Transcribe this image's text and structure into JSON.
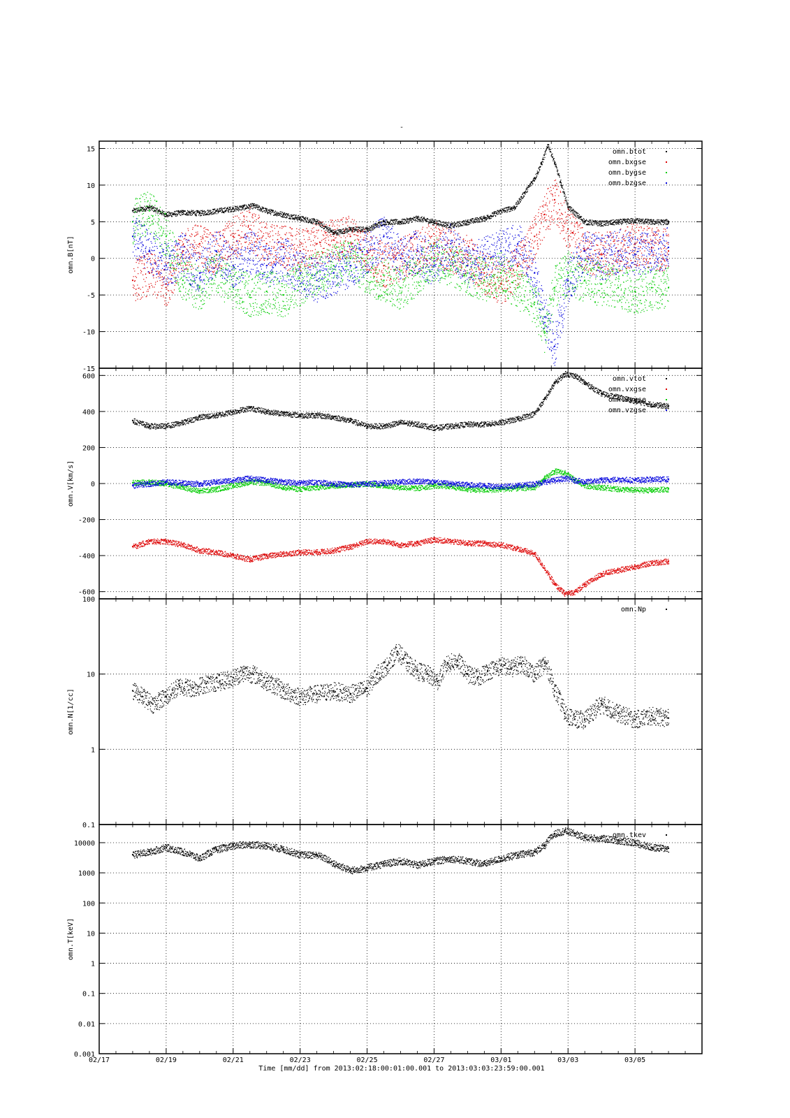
{
  "title": "-",
  "xlabel": "Time [mm/dd]  from 2013:02:18:00:01:00.001  to  2013:03:03:23:59:00.001",
  "x_ticks": [
    "02/17",
    "02/19",
    "02/21",
    "02/23",
    "02/25",
    "02/27",
    "03/01",
    "03/03",
    "03/05"
  ],
  "colors": {
    "black": "#000000",
    "red": "#dd0000",
    "green": "#00cc00",
    "blue": "#0000dd"
  },
  "chart_data": [
    {
      "type": "scatter",
      "ylabel": "omn.B[nT]",
      "ylim": [
        -15,
        16
      ],
      "yscale": "linear",
      "y_ticks": [
        "15",
        "10",
        "5",
        "0",
        "-5",
        "-10",
        "-15"
      ],
      "x_range_days": [
        17,
        33
      ],
      "grid": true,
      "legend": "top-right",
      "series": [
        {
          "name": "omn.btot",
          "color": "#000000",
          "x": [
            18.0,
            18.5,
            19.0,
            19.5,
            20.0,
            20.5,
            21.0,
            21.3,
            21.6,
            22.0,
            22.5,
            23.0,
            23.5,
            24.0,
            24.5,
            25.0,
            25.5,
            26.0,
            26.5,
            27.0,
            27.5,
            28.0,
            28.5,
            29.0,
            29.4,
            29.7,
            30.0,
            30.2,
            30.4,
            30.6,
            30.8,
            31.0,
            31.5,
            32.0,
            32.5,
            33.0,
            33.5,
            34.0
          ],
          "y": [
            6.5,
            7.0,
            6.0,
            6.3,
            6.2,
            6.5,
            6.8,
            7.0,
            7.2,
            6.5,
            6.0,
            5.5,
            5.0,
            3.5,
            4.0,
            4.0,
            5.0,
            5.0,
            5.5,
            5.0,
            4.5,
            5.0,
            5.5,
            6.5,
            7.0,
            9.0,
            11.0,
            13.0,
            15.5,
            13.0,
            10.0,
            7.0,
            5.0,
            4.8,
            5.0,
            5.2,
            5.0,
            5.0
          ]
        },
        {
          "name": "omn.bxgse",
          "color": "#dd0000",
          "x": [
            18.0,
            18.5,
            19.0,
            19.5,
            20.0,
            20.5,
            21.0,
            21.5,
            22.0,
            22.5,
            23.0,
            23.5,
            24.0,
            24.5,
            25.0,
            25.5,
            26.0,
            26.5,
            27.0,
            27.5,
            28.0,
            28.5,
            29.0,
            29.5,
            30.0,
            30.3,
            30.6,
            31.0,
            31.5,
            32.0,
            32.5,
            33.0,
            33.5,
            34.0
          ],
          "y": [
            -3.0,
            -2.0,
            -3.5,
            1.0,
            2.0,
            0.5,
            3.0,
            4.0,
            2.0,
            1.5,
            1.0,
            2.0,
            2.5,
            3.0,
            1.0,
            -1.0,
            0.0,
            1.0,
            2.0,
            1.0,
            0.5,
            -2.0,
            -3.5,
            -1.0,
            3.0,
            6.0,
            8.0,
            4.0,
            1.0,
            0.5,
            1.0,
            2.0,
            1.5,
            1.0
          ]
        },
        {
          "name": "omn.bygse",
          "color": "#00cc00",
          "x": [
            18.0,
            18.5,
            19.0,
            19.5,
            20.0,
            20.5,
            21.0,
            21.5,
            22.0,
            22.5,
            23.0,
            23.5,
            24.0,
            24.5,
            25.0,
            25.5,
            26.0,
            26.5,
            27.0,
            27.5,
            28.0,
            28.5,
            29.0,
            29.5,
            30.0,
            30.3,
            30.6,
            31.0,
            31.5,
            32.0,
            32.5,
            33.0,
            33.5,
            34.0
          ],
          "y": [
            5.0,
            6.5,
            3.0,
            -3.0,
            -4.0,
            -2.0,
            -4.0,
            -5.0,
            -4.5,
            -5.0,
            -3.5,
            -2.0,
            -1.0,
            0.0,
            -2.0,
            -3.0,
            -4.0,
            -2.0,
            0.0,
            -1.0,
            -2.0,
            -3.0,
            -2.0,
            -4.0,
            -6.0,
            -10.0,
            -4.0,
            -2.0,
            -3.0,
            -3.5,
            -4.0,
            -4.5,
            -4.0,
            -4.0
          ]
        },
        {
          "name": "omn.bzgse",
          "color": "#0000dd",
          "x": [
            18.0,
            18.5,
            19.0,
            19.5,
            20.0,
            20.5,
            21.0,
            21.5,
            22.0,
            22.5,
            23.0,
            23.5,
            24.0,
            24.5,
            25.0,
            25.5,
            26.0,
            26.5,
            27.0,
            27.5,
            28.0,
            28.5,
            29.0,
            29.5,
            30.0,
            30.3,
            30.6,
            31.0,
            31.5,
            32.0,
            32.5,
            33.0,
            33.5,
            34.0
          ],
          "y": [
            3.0,
            1.0,
            -1.0,
            0.5,
            -2.0,
            1.0,
            -1.0,
            1.0,
            -1.0,
            0.0,
            -2.0,
            -3.0,
            -2.0,
            -1.0,
            1.0,
            3.0,
            0.0,
            1.0,
            -1.0,
            2.0,
            -1.0,
            0.0,
            1.0,
            2.0,
            -2.0,
            -8.0,
            -12.0,
            -3.0,
            1.0,
            0.0,
            1.0,
            0.5,
            1.0,
            1.5
          ]
        }
      ]
    },
    {
      "type": "scatter",
      "ylabel": "omn.V[km/s]",
      "ylim": [
        -640,
        640
      ],
      "yscale": "linear",
      "y_ticks": [
        "600",
        "400",
        "200",
        "0",
        "-200",
        "-400",
        "-600"
      ],
      "grid": true,
      "legend": "top-right",
      "series": [
        {
          "name": "omn.vtot",
          "color": "#000000",
          "x": [
            18.0,
            18.5,
            19.0,
            19.5,
            20.0,
            20.5,
            21.0,
            21.5,
            22.0,
            22.5,
            23.0,
            23.5,
            24.0,
            24.5,
            25.0,
            25.5,
            26.0,
            26.5,
            27.0,
            27.5,
            28.0,
            28.5,
            29.0,
            29.5,
            30.0,
            30.3,
            30.6,
            30.9,
            31.2,
            31.5,
            32.0,
            32.5,
            33.0,
            33.5,
            34.0
          ],
          "y": [
            350,
            320,
            320,
            340,
            370,
            380,
            400,
            420,
            400,
            390,
            380,
            380,
            370,
            350,
            320,
            320,
            340,
            330,
            310,
            320,
            330,
            330,
            340,
            360,
            390,
            470,
            560,
            610,
            600,
            560,
            500,
            480,
            460,
            440,
            430
          ]
        },
        {
          "name": "omn.vxgse",
          "color": "#dd0000",
          "x": [
            18.0,
            18.5,
            19.0,
            19.5,
            20.0,
            20.5,
            21.0,
            21.5,
            22.0,
            22.5,
            23.0,
            23.5,
            24.0,
            24.5,
            25.0,
            25.5,
            26.0,
            26.5,
            27.0,
            27.5,
            28.0,
            28.5,
            29.0,
            29.5,
            30.0,
            30.3,
            30.6,
            30.9,
            31.2,
            31.5,
            32.0,
            32.5,
            33.0,
            33.5,
            34.0
          ],
          "y": [
            -350,
            -320,
            -320,
            -340,
            -370,
            -380,
            -400,
            -420,
            -400,
            -390,
            -380,
            -380,
            -370,
            -350,
            -320,
            -320,
            -340,
            -330,
            -310,
            -320,
            -330,
            -330,
            -340,
            -360,
            -390,
            -470,
            -560,
            -610,
            -600,
            -560,
            -500,
            -480,
            -460,
            -440,
            -430
          ]
        },
        {
          "name": "omn.vygse",
          "color": "#00cc00",
          "x": [
            18.0,
            18.5,
            19.0,
            19.5,
            20.0,
            20.5,
            21.0,
            21.5,
            22.0,
            22.5,
            23.0,
            23.5,
            24.0,
            24.5,
            25.0,
            25.5,
            26.0,
            26.5,
            27.0,
            27.5,
            28.0,
            28.5,
            29.0,
            29.5,
            30.0,
            30.3,
            30.6,
            30.9,
            31.2,
            31.5,
            32.0,
            32.5,
            33.0,
            33.5,
            34.0
          ],
          "y": [
            5,
            10,
            0,
            -20,
            -40,
            -30,
            -10,
            10,
            5,
            -20,
            -30,
            -20,
            -10,
            -5,
            0,
            -10,
            -20,
            -25,
            -10,
            -15,
            -30,
            -35,
            -30,
            -25,
            -20,
            30,
            70,
            60,
            20,
            -10,
            -20,
            -30,
            -35,
            -35,
            -30
          ]
        },
        {
          "name": "omn.vzgse",
          "color": "#0000dd",
          "x": [
            18.0,
            18.5,
            19.0,
            19.5,
            20.0,
            20.5,
            21.0,
            21.5,
            22.0,
            22.5,
            23.0,
            23.5,
            24.0,
            24.5,
            25.0,
            25.5,
            26.0,
            26.5,
            27.0,
            27.5,
            28.0,
            28.5,
            29.0,
            29.5,
            30.0,
            30.3,
            30.6,
            30.9,
            31.2,
            31.5,
            32.0,
            32.5,
            33.0,
            33.5,
            34.0
          ],
          "y": [
            -10,
            0,
            10,
            5,
            0,
            10,
            20,
            30,
            20,
            10,
            5,
            10,
            0,
            -5,
            0,
            5,
            10,
            15,
            10,
            0,
            -5,
            -10,
            -15,
            -10,
            0,
            10,
            20,
            30,
            20,
            10,
            20,
            25,
            20,
            25,
            25
          ]
        }
      ]
    },
    {
      "type": "scatter",
      "ylabel": "omn.N[1/cc]",
      "ylim": [
        0.1,
        100
      ],
      "yscale": "log",
      "y_ticks": [
        "100",
        "10",
        "1",
        "0.1"
      ],
      "grid": true,
      "legend": "top-right",
      "series": [
        {
          "name": "omn.Np",
          "color": "#000000",
          "x": [
            18.0,
            18.3,
            18.6,
            19.0,
            19.4,
            19.8,
            20.2,
            20.6,
            21.0,
            21.3,
            21.6,
            22.0,
            22.5,
            23.0,
            23.5,
            24.0,
            24.5,
            25.0,
            25.3,
            25.6,
            25.9,
            26.2,
            26.5,
            26.8,
            27.1,
            27.4,
            27.7,
            28.0,
            28.3,
            28.6,
            29.0,
            29.3,
            29.6,
            30.0,
            30.3,
            30.6,
            30.9,
            31.2,
            31.5,
            32.0,
            32.5,
            33.0,
            33.5,
            34.0
          ],
          "y": [
            6.0,
            5.0,
            4.0,
            5.0,
            7.0,
            6.5,
            7.5,
            8.0,
            9.0,
            10.5,
            10.0,
            8.0,
            6.0,
            5.0,
            5.5,
            6.0,
            5.5,
            6.5,
            10.0,
            13.0,
            20.0,
            14.0,
            11.0,
            10.0,
            8.0,
            14.0,
            15.0,
            10.0,
            9.0,
            11.0,
            13.0,
            12.0,
            14.0,
            10.0,
            14.0,
            6.0,
            3.0,
            2.5,
            2.5,
            4.0,
            3.0,
            2.5,
            2.8,
            2.6
          ]
        }
      ]
    },
    {
      "type": "scatter",
      "ylabel": "omn.T[keV]",
      "ylim": [
        0.001,
        40000
      ],
      "yscale": "log",
      "y_ticks": [
        "10000",
        "1000",
        "100",
        "10",
        "1",
        "0.1",
        "0.01",
        "0.001"
      ],
      "grid": true,
      "legend": "top-right",
      "series": [
        {
          "name": "omn.tkev",
          "color": "#000000",
          "x": [
            18.0,
            18.5,
            19.0,
            19.5,
            20.0,
            20.5,
            21.0,
            21.5,
            22.0,
            22.5,
            23.0,
            23.5,
            24.0,
            24.5,
            25.0,
            25.5,
            26.0,
            26.5,
            27.0,
            27.5,
            28.0,
            28.5,
            29.0,
            29.5,
            30.0,
            30.3,
            30.6,
            30.9,
            31.2,
            31.5,
            32.0,
            32.5,
            33.0,
            33.5,
            34.0
          ],
          "y": [
            4000,
            5000,
            7000,
            5000,
            3000,
            6000,
            8000,
            9000,
            8000,
            6000,
            4000,
            4000,
            2000,
            1200,
            1500,
            2000,
            2500,
            1800,
            2500,
            3000,
            2500,
            2000,
            3000,
            4000,
            5000,
            8000,
            20000,
            25000,
            20000,
            15000,
            14000,
            12000,
            10000,
            7000,
            6500
          ]
        }
      ]
    }
  ]
}
